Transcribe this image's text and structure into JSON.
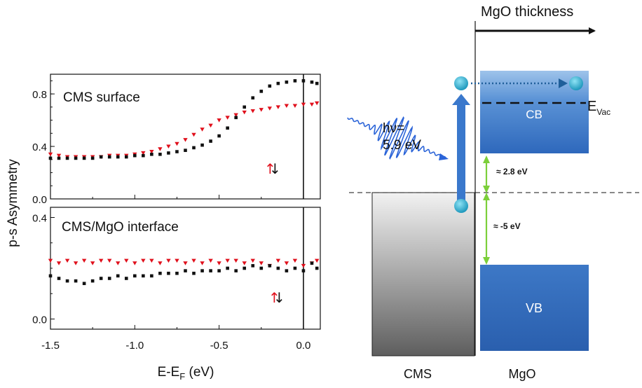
{
  "chart_data": [
    {
      "type": "scatter",
      "panel": "top",
      "title": "CMS surface",
      "xlim": [
        -1.5,
        0.1
      ],
      "ylim": [
        0.0,
        0.95
      ],
      "yticks": [
        "0.0",
        "0.4",
        "0.8"
      ],
      "ytick_values": [
        0.0,
        0.4,
        0.8
      ],
      "vline_x": 0.0,
      "spin_label": "↑↓",
      "series": [
        {
          "name": "red (spin up)",
          "color": "#e0101c",
          "marker": "triangle-down",
          "x": [
            -1.5,
            -1.45,
            -1.4,
            -1.35,
            -1.3,
            -1.25,
            -1.2,
            -1.15,
            -1.1,
            -1.05,
            -1.0,
            -0.95,
            -0.9,
            -0.85,
            -0.8,
            -0.75,
            -0.7,
            -0.65,
            -0.6,
            -0.55,
            -0.5,
            -0.45,
            -0.4,
            -0.35,
            -0.3,
            -0.25,
            -0.2,
            -0.15,
            -0.1,
            -0.05,
            0.0,
            0.05,
            0.08
          ],
          "y": [
            0.34,
            0.33,
            0.32,
            0.32,
            0.32,
            0.32,
            0.32,
            0.33,
            0.33,
            0.33,
            0.34,
            0.35,
            0.36,
            0.38,
            0.4,
            0.42,
            0.45,
            0.49,
            0.53,
            0.56,
            0.6,
            0.62,
            0.64,
            0.66,
            0.67,
            0.68,
            0.69,
            0.7,
            0.71,
            0.71,
            0.72,
            0.72,
            0.73
          ]
        },
        {
          "name": "black (spin down)",
          "color": "#111111",
          "marker": "square",
          "x": [
            -1.5,
            -1.45,
            -1.4,
            -1.35,
            -1.3,
            -1.25,
            -1.2,
            -1.15,
            -1.1,
            -1.05,
            -1.0,
            -0.95,
            -0.9,
            -0.85,
            -0.8,
            -0.75,
            -0.7,
            -0.65,
            -0.6,
            -0.55,
            -0.5,
            -0.45,
            -0.4,
            -0.35,
            -0.3,
            -0.25,
            -0.2,
            -0.15,
            -0.1,
            -0.05,
            0.0,
            0.05,
            0.08
          ],
          "y": [
            0.31,
            0.31,
            0.31,
            0.31,
            0.31,
            0.31,
            0.32,
            0.32,
            0.32,
            0.32,
            0.33,
            0.33,
            0.34,
            0.34,
            0.35,
            0.36,
            0.37,
            0.39,
            0.41,
            0.44,
            0.48,
            0.54,
            0.62,
            0.7,
            0.77,
            0.82,
            0.86,
            0.88,
            0.89,
            0.9,
            0.9,
            0.89,
            0.88
          ]
        }
      ]
    },
    {
      "type": "scatter",
      "panel": "bottom",
      "title": "CMS/MgO interface",
      "xlim": [
        -1.5,
        0.1
      ],
      "ylim": [
        -0.04,
        0.44
      ],
      "yticks": [
        "0.0",
        "0.4"
      ],
      "ytick_values": [
        0.0,
        0.4
      ],
      "vline_x": 0.0,
      "spin_label": "↑↓",
      "xlabel": "E-E",
      "xlabel_sub": "F",
      "xlabel_tail": " (eV)",
      "ylabel": "p-s Asymmetry",
      "xticks": [
        "-1.5",
        "-1.0",
        "-0.5",
        "0.0"
      ],
      "xtick_values": [
        -1.5,
        -1.0,
        -0.5,
        0.0
      ],
      "series": [
        {
          "name": "red (spin up)",
          "color": "#e0101c",
          "marker": "triangle-down",
          "x": [
            -1.5,
            -1.45,
            -1.4,
            -1.35,
            -1.3,
            -1.25,
            -1.2,
            -1.15,
            -1.1,
            -1.05,
            -1.0,
            -0.95,
            -0.9,
            -0.85,
            -0.8,
            -0.75,
            -0.7,
            -0.65,
            -0.6,
            -0.55,
            -0.5,
            -0.45,
            -0.4,
            -0.35,
            -0.3,
            -0.25,
            -0.2,
            -0.15,
            -0.1,
            -0.05,
            0.0,
            0.05,
            0.08
          ],
          "y": [
            0.23,
            0.22,
            0.23,
            0.22,
            0.23,
            0.22,
            0.23,
            0.23,
            0.22,
            0.23,
            0.22,
            0.23,
            0.23,
            0.22,
            0.23,
            0.23,
            0.22,
            0.23,
            0.22,
            0.23,
            0.22,
            0.23,
            0.23,
            0.22,
            0.23,
            0.22,
            0.21,
            0.23,
            0.22,
            0.23,
            0.21,
            0.22,
            0.23
          ]
        },
        {
          "name": "black (spin down)",
          "color": "#111111",
          "marker": "square",
          "x": [
            -1.5,
            -1.45,
            -1.4,
            -1.35,
            -1.3,
            -1.25,
            -1.2,
            -1.15,
            -1.1,
            -1.05,
            -1.0,
            -0.95,
            -0.9,
            -0.85,
            -0.8,
            -0.75,
            -0.7,
            -0.65,
            -0.6,
            -0.55,
            -0.5,
            -0.45,
            -0.4,
            -0.35,
            -0.3,
            -0.25,
            -0.2,
            -0.15,
            -0.1,
            -0.05,
            0.0,
            0.05,
            0.08
          ],
          "y": [
            0.17,
            0.16,
            0.15,
            0.15,
            0.14,
            0.15,
            0.16,
            0.16,
            0.17,
            0.16,
            0.17,
            0.17,
            0.17,
            0.18,
            0.18,
            0.18,
            0.19,
            0.18,
            0.19,
            0.19,
            0.19,
            0.2,
            0.19,
            0.2,
            0.21,
            0.2,
            0.21,
            0.2,
            0.19,
            0.2,
            0.19,
            0.22,
            0.2
          ]
        }
      ]
    }
  ],
  "diagram": {
    "mgo_thickness_label": "MgO thickness",
    "photon_label_line1": "hν=",
    "photon_label_line2": "5.9 eV",
    "evac_label": "E",
    "evac_sub": "Vac",
    "cb_label": "CB",
    "vb_label": "VB",
    "gap_upper_label": "≈ 2.8 eV",
    "gap_lower_label": "≈ -5 eV",
    "cms_label": "CMS",
    "mgo_label": "MgO",
    "colors": {
      "band": "#2f6fc1",
      "band_light": "#8fb7e6",
      "electron": "#1fa5c8",
      "green": "#7ccf3a",
      "photon": "#2b64d8"
    }
  }
}
